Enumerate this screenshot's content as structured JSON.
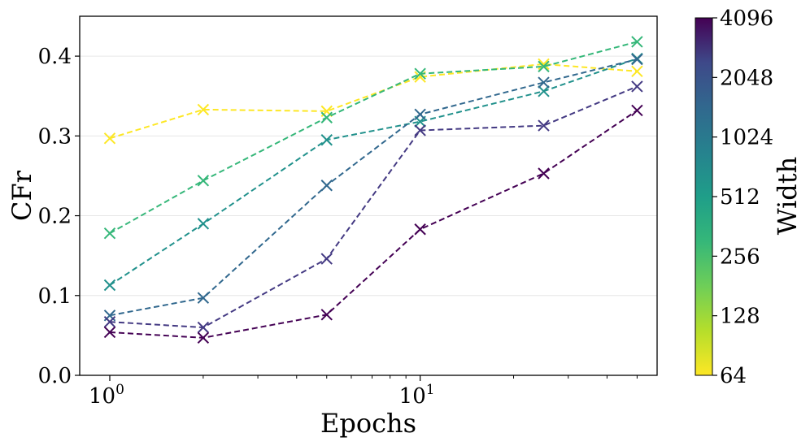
{
  "chart_data": {
    "type": "line",
    "title": "",
    "xlabel": "Epochs",
    "ylabel": "CFr",
    "xscale": "log",
    "xlim": [
      0.8,
      58
    ],
    "ylim": [
      0.0,
      0.45
    ],
    "x_ticks": [
      {
        "value": 1,
        "base": "10",
        "exp": "0"
      },
      {
        "value": 10,
        "base": "10",
        "exp": "1"
      }
    ],
    "y_ticks": [
      {
        "value": 0.0,
        "label": "0.0"
      },
      {
        "value": 0.1,
        "label": "0.1"
      },
      {
        "value": 0.2,
        "label": "0.2"
      },
      {
        "value": 0.3,
        "label": "0.3"
      },
      {
        "value": 0.4,
        "label": "0.4"
      }
    ],
    "grid": "horizontal",
    "marker": "x",
    "linestyle": "dashed",
    "x": [
      1,
      2,
      5,
      10,
      25,
      50
    ],
    "series": [
      {
        "name": "64",
        "color": "#fde725",
        "values": [
          0.297,
          0.333,
          0.331,
          0.374,
          0.39,
          0.381
        ]
      },
      {
        "name": "256",
        "color": "#35b779",
        "values": [
          0.178,
          0.244,
          0.323,
          0.378,
          0.387,
          0.418
        ]
      },
      {
        "name": "512",
        "color": "#21918c",
        "values": [
          0.113,
          0.19,
          0.295,
          0.318,
          0.356,
          0.397
        ]
      },
      {
        "name": "1024",
        "color": "#31688e",
        "values": [
          0.075,
          0.097,
          0.238,
          0.327,
          0.367,
          0.396
        ]
      },
      {
        "name": "2048",
        "color": "#443a83",
        "values": [
          0.067,
          0.06,
          0.146,
          0.307,
          0.313,
          0.362
        ]
      },
      {
        "name": "4096",
        "color": "#440154",
        "values": [
          0.054,
          0.047,
          0.076,
          0.183,
          0.253,
          0.332
        ]
      }
    ],
    "colorbar": {
      "label": "Width",
      "scale": "log2",
      "range": [
        64,
        4096
      ],
      "colormap": "viridis",
      "ticks": [
        "64",
        "128",
        "256",
        "512",
        "1024",
        "2048",
        "4096"
      ]
    }
  }
}
